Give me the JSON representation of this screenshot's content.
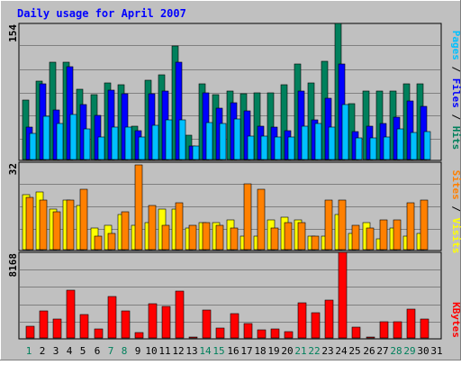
{
  "chart_data": [
    {
      "type": "bar",
      "panel": "hits-files-pages",
      "title": "Daily usage for April 2007",
      "categories": [
        "1",
        "2",
        "3",
        "4",
        "5",
        "6",
        "7",
        "8",
        "9",
        "10",
        "11",
        "12",
        "13",
        "14",
        "15",
        "16",
        "17",
        "18",
        "19",
        "20",
        "21",
        "22",
        "23",
        "24",
        "25",
        "26",
        "27",
        "28",
        "29",
        "30",
        "31"
      ],
      "ymax_label": "154",
      "ylim": [
        0,
        154
      ],
      "series": [
        {
          "name": "Hits",
          "color": "#00805c",
          "values": [
            67,
            89,
            110,
            110,
            80,
            73,
            87,
            85,
            38,
            90,
            96,
            128,
            28,
            86,
            73,
            78,
            74,
            75,
            75,
            85,
            108,
            87,
            111,
            154,
            63,
            77,
            78,
            77,
            86,
            86,
            0
          ]
        },
        {
          "name": "Files",
          "color": "#0000ff",
          "values": [
            37,
            86,
            56,
            105,
            62,
            50,
            79,
            74,
            33,
            74,
            77,
            110,
            15,
            75,
            58,
            64,
            55,
            38,
            37,
            33,
            78,
            45,
            69,
            108,
            32,
            38,
            41,
            48,
            66,
            60,
            0
          ]
        },
        {
          "name": "Pages",
          "color": "#00c0ff",
          "values": [
            30,
            49,
            41,
            51,
            35,
            25,
            37,
            37,
            25,
            39,
            45,
            45,
            15,
            42,
            41,
            46,
            27,
            27,
            25,
            25,
            38,
            41,
            37,
            62,
            24,
            24,
            26,
            35,
            31,
            32,
            0
          ]
        }
      ],
      "ylabel_parts": [
        "Pages",
        " / ",
        "Files",
        " / ",
        "Hits"
      ],
      "grid": true
    },
    {
      "type": "bar",
      "panel": "sites-visits",
      "categories": [
        "1",
        "2",
        "3",
        "4",
        "5",
        "6",
        "7",
        "8",
        "9",
        "10",
        "11",
        "12",
        "13",
        "14",
        "15",
        "16",
        "17",
        "18",
        "19",
        "20",
        "21",
        "22",
        "23",
        "24",
        "25",
        "26",
        "27",
        "28",
        "29",
        "30",
        "31"
      ],
      "ymax_label": "32",
      "ylim": [
        0,
        32
      ],
      "series": [
        {
          "name": "Visits",
          "color": "#ffff00",
          "values": [
            20,
            21,
            15,
            18,
            16,
            8,
            9,
            13,
            9,
            10,
            15,
            15,
            8,
            10,
            10,
            11,
            5,
            5,
            11,
            12,
            11,
            5,
            5,
            13,
            6,
            10,
            4,
            8,
            5,
            6,
            0
          ]
        },
        {
          "name": "Sites",
          "color": "#ff8000",
          "values": [
            19,
            18,
            14,
            18,
            22,
            5,
            6,
            14,
            31,
            16,
            9,
            17,
            9,
            10,
            9,
            8,
            24,
            22,
            8,
            10,
            10,
            5,
            18,
            18,
            9,
            8,
            11,
            11,
            17,
            18,
            0
          ]
        }
      ],
      "ylabel_parts": [
        "Sites",
        " / ",
        "Visits"
      ],
      "grid": true
    },
    {
      "type": "bar",
      "panel": "kbytes",
      "categories": [
        "1",
        "2",
        "3",
        "4",
        "5",
        "6",
        "7",
        "8",
        "9",
        "10",
        "11",
        "12",
        "13",
        "14",
        "15",
        "16",
        "17",
        "18",
        "19",
        "20",
        "21",
        "22",
        "23",
        "24",
        "25",
        "26",
        "27",
        "28",
        "29",
        "30",
        "31"
      ],
      "ymax_label": "8168",
      "ylim": [
        0,
        8168
      ],
      "series": [
        {
          "name": "KBytes",
          "color": "#ff0000",
          "values": [
            1080,
            2550,
            1800,
            4580,
            2220,
            900,
            3950,
            2550,
            510,
            3280,
            3030,
            4460,
            60,
            2700,
            930,
            2310,
            1410,
            800,
            860,
            560,
            3380,
            2370,
            3610,
            8168,
            1010,
            60,
            1520,
            1520,
            2710,
            1830,
            0
          ]
        }
      ],
      "ylabel_parts": [
        "KBytes"
      ],
      "grid": true
    }
  ],
  "weekend_days": [
    "1",
    "7",
    "8",
    "14",
    "15",
    "21",
    "22",
    "28",
    "29"
  ],
  "colors": {
    "frame": "#c0c0c0",
    "plot_bg": "#c0c0c0",
    "title": "#0000ff",
    "text": "#000000",
    "weekend_label": "#00805c",
    "weekday_label": "#000000",
    "grid": "#808080"
  }
}
